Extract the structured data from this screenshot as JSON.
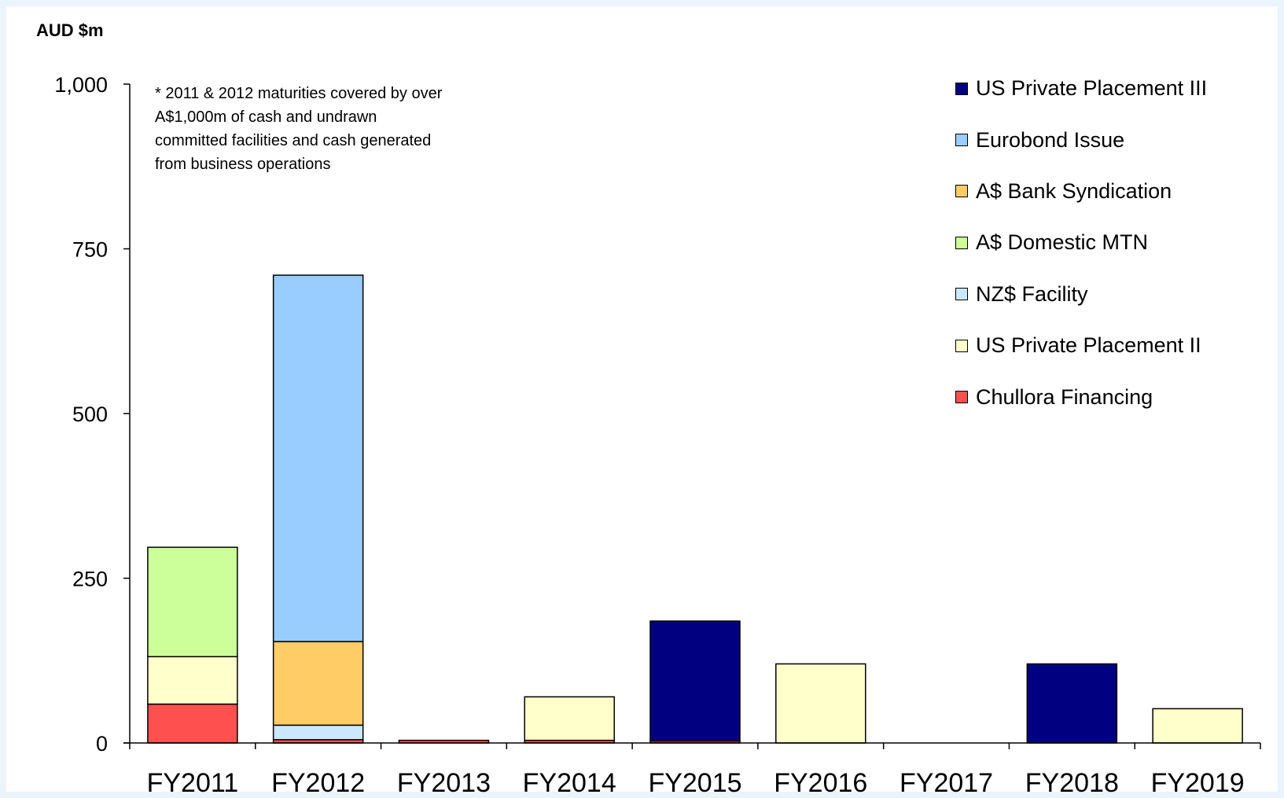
{
  "chart_data": {
    "type": "bar",
    "stacked": true,
    "unit_label": "AUD $m",
    "note": [
      "* 2011 & 2012 maturities covered by over",
      "A$1,000m of cash and undrawn",
      "committed facilities and cash generated",
      "from business operations"
    ],
    "categories": [
      "FY2011",
      "FY2012",
      "FY2013",
      "FY2014",
      "FY2015",
      "FY2016",
      "FY2017",
      "FY2018",
      "FY2019"
    ],
    "ylim": [
      0,
      1000
    ],
    "yticks": [
      0,
      250,
      500,
      750,
      1000
    ],
    "ytick_labels": [
      "0",
      "250",
      "500",
      "750",
      "1,000"
    ],
    "grid": false,
    "legend_position": "top-right",
    "series": [
      {
        "name": "Chullora Financing",
        "color": "#ff5050",
        "values": [
          59,
          5,
          4,
          4,
          3,
          0,
          0,
          0,
          0
        ]
      },
      {
        "name": "US Private Placement II",
        "color": "#ffffcc",
        "values": [
          72,
          0,
          0,
          66,
          0,
          120,
          0,
          0,
          52
        ]
      },
      {
        "name": "NZ$ Facility",
        "color": "#cce8ff",
        "values": [
          0,
          22,
          0,
          0,
          0,
          0,
          0,
          0,
          0
        ]
      },
      {
        "name": "A$ Domestic MTN",
        "color": "#ccff99",
        "values": [
          166,
          0,
          0,
          0,
          0,
          0,
          0,
          0,
          0
        ]
      },
      {
        "name": "A$ Bank Syndication",
        "color": "#ffcc66",
        "values": [
          0,
          127,
          0,
          0,
          0,
          0,
          0,
          0,
          0
        ]
      },
      {
        "name": "Eurobond Issue",
        "color": "#99ccff",
        "values": [
          0,
          556,
          0,
          0,
          0,
          0,
          0,
          0,
          0
        ]
      },
      {
        "name": "US Private Placement III",
        "color": "#000080",
        "values": [
          0,
          0,
          0,
          0,
          182,
          0,
          0,
          120,
          0
        ]
      }
    ],
    "legend_order": [
      "US Private Placement III",
      "Eurobond Issue",
      "A$ Bank Syndication",
      "A$ Domestic MTN",
      "NZ$ Facility",
      "US Private Placement II",
      "Chullora Financing"
    ]
  }
}
